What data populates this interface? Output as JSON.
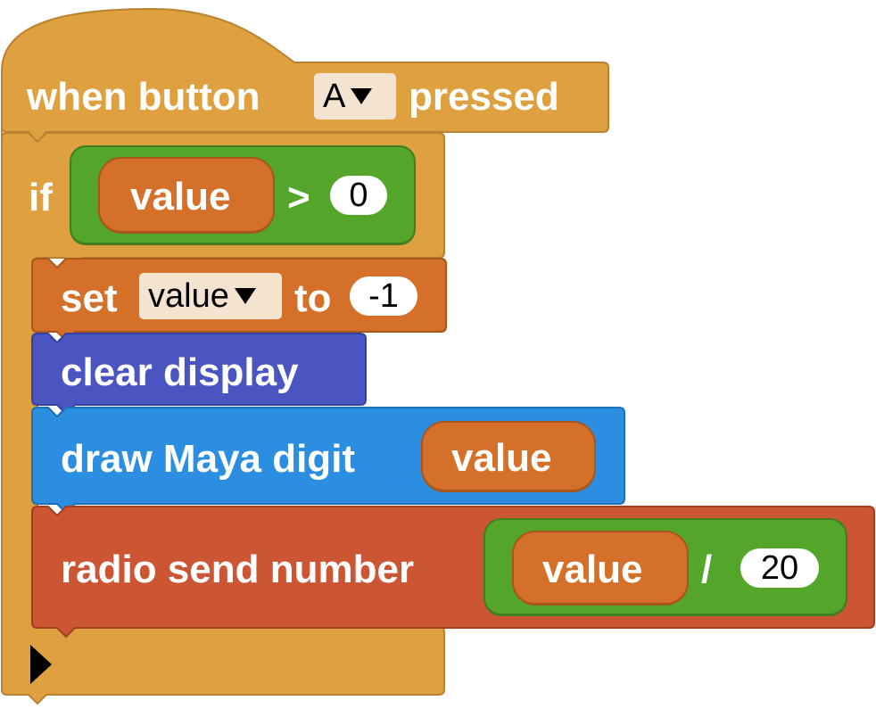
{
  "hat": {
    "text_when_button": "when button",
    "button_value": "A",
    "text_pressed": "pressed"
  },
  "if_block": {
    "keyword": "if",
    "condition": {
      "variable": "value",
      "operator": ">",
      "operand": "0"
    }
  },
  "set_block": {
    "text_set": "set",
    "variable": "value",
    "text_to": "to",
    "value": "-1"
  },
  "clear_block": {
    "label": "clear display"
  },
  "draw_block": {
    "label": "draw Maya digit",
    "argument": "value"
  },
  "radio_block": {
    "label": "radio send number",
    "expression": {
      "variable": "value",
      "operator": "/",
      "operand": "20"
    }
  },
  "colors": {
    "events": "#dfa03f",
    "variables": "#d4702a",
    "logic": "#54a62a",
    "display": "#4a55c2",
    "drawing": "#2b8ee0",
    "radio": "#cc5533"
  }
}
